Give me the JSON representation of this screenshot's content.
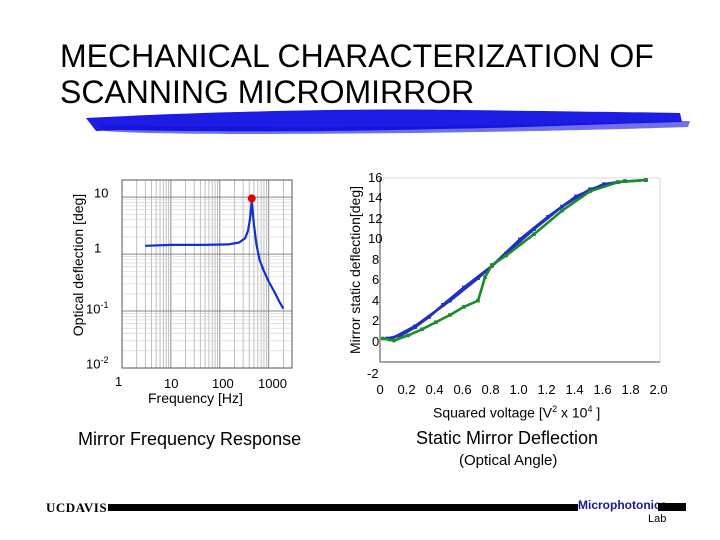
{
  "title": {
    "line1": "MECHANICAL CHARACTERIZATION OF",
    "line2": "SCANNING MICROMIRROR"
  },
  "colors": {
    "brush": "#1010e0",
    "frequency_curve": "#1030d0",
    "resonance_marker": "#e00000",
    "static_blue": "#2030c0",
    "static_green": "#1a8c2a"
  },
  "chart_data": [
    {
      "type": "line",
      "caption": "Mirror Frequency Response",
      "xlabel": "Frequency [Hz]",
      "ylabel": "Optical deflection [deg]",
      "x_scale": "log",
      "y_scale": "log",
      "xlim": [
        1,
        3000
      ],
      "ylim": [
        0.01,
        20
      ],
      "x_ticks": [
        {
          "value": 1,
          "label": "1"
        },
        {
          "value": 10,
          "label": "10"
        },
        {
          "value": 100,
          "label": "100"
        },
        {
          "value": 1000,
          "label": "1000"
        }
      ],
      "y_ticks": [
        {
          "value": 10,
          "label": "10",
          "base": "10",
          "sup": ""
        },
        {
          "value": 1,
          "label": "1",
          "base": "1",
          "sup": ""
        },
        {
          "value": 0.1,
          "label": "10-1",
          "base": "10",
          "sup": "-1"
        },
        {
          "value": 0.01,
          "label": "10-2",
          "base": "10",
          "sup": "-2"
        }
      ],
      "grid": true,
      "series": [
        {
          "x": [
            3,
            10,
            50,
            150,
            250,
            330,
            380,
            420,
            450,
            500,
            560,
            650,
            800,
            1000,
            1300,
            1700,
            2000
          ],
          "y": [
            1.4,
            1.45,
            1.45,
            1.48,
            1.6,
            1.9,
            2.6,
            4.5,
            8.5,
            3.2,
            1.5,
            0.8,
            0.5,
            0.33,
            0.22,
            0.14,
            0.11
          ]
        }
      ],
      "resonance": {
        "x": 450,
        "y": 9.5
      }
    },
    {
      "type": "line",
      "caption": "Static Mirror Deflection",
      "subcaption": "(Optical Angle)",
      "xlabel": "Squared voltage [V2 x 104 ]",
      "xlabel_parts": {
        "a": "Squared voltage [V",
        "sup1": "2",
        "b": " x 10",
        "sup2": "4",
        "c": " ]"
      },
      "ylabel": "Mirror static deflection[deg]",
      "xlim": [
        0,
        2.0
      ],
      "ylim": [
        -2,
        16
      ],
      "x_ticks": [
        "0",
        "0.2",
        "0.4",
        "0.6",
        "0.8",
        "1.0",
        "1.2",
        "1.4",
        "1.6",
        "1.8",
        "2.0"
      ],
      "y_ticks": [
        "16",
        "14",
        "12",
        "10",
        "8",
        "6",
        "4",
        "2",
        "0",
        "-2"
      ],
      "grid": false,
      "series": [
        {
          "color_key": "static_blue",
          "x": [
            0.05,
            0.15,
            0.25,
            0.35,
            0.45,
            0.6,
            0.8,
            1.0,
            1.2,
            1.4,
            1.6,
            1.75
          ],
          "y": [
            0.3,
            0.6,
            1.4,
            2.4,
            3.6,
            5.3,
            7.4,
            10.0,
            12.2,
            14.2,
            15.4,
            15.7
          ]
        },
        {
          "color_key": "static_blue",
          "x": [
            0.07,
            0.25,
            0.5,
            0.7,
            0.9,
            1.1,
            1.3,
            1.5,
            1.7,
            1.9
          ],
          "y": [
            0.2,
            1.5,
            4.0,
            6.2,
            8.6,
            11.0,
            13.2,
            14.9,
            15.6,
            15.8
          ]
        },
        {
          "color_key": "static_green",
          "x": [
            0.02,
            0.1,
            0.2,
            0.3,
            0.4,
            0.5,
            0.6,
            0.7,
            0.75,
            0.8,
            0.9,
            1.1,
            1.3,
            1.5,
            1.7,
            1.9
          ],
          "y": [
            0.3,
            0.1,
            0.6,
            1.2,
            1.9,
            2.6,
            3.4,
            4.0,
            6.3,
            7.5,
            8.4,
            10.5,
            12.8,
            14.7,
            15.6,
            15.8
          ]
        }
      ]
    }
  ],
  "footer": {
    "org": "UCDAVIS",
    "lab_name": "Microphotonics",
    "lab_suffix": "Lab"
  }
}
